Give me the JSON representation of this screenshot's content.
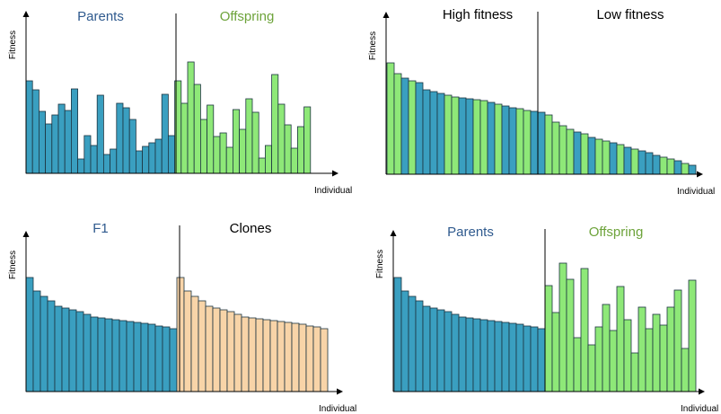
{
  "colors": {
    "blue": "#3a9fc0",
    "green": "#8ee878",
    "peach": "#f8d4a8",
    "outline": "#1c3440",
    "axis": "#000000",
    "parents_title": "#2f5a8e",
    "offspring_title": "#6da33a",
    "black_title": "#000000"
  },
  "panels": [
    {
      "id": "top-left",
      "ylabel": "Fitness",
      "xlabel": "Individual",
      "left_title": "Parents",
      "right_title": "Offspring",
      "left_title_color": "parents_title",
      "right_title_color": "offspring_title",
      "left_values": [
        103,
        93,
        69,
        55,
        65,
        77,
        70,
        94,
        16,
        42,
        31,
        87,
        21,
        27,
        78,
        73,
        60,
        25,
        30,
        34,
        38,
        88,
        42
      ],
      "right_values": [
        103,
        78,
        124,
        99,
        60,
        76,
        41,
        45,
        29,
        71,
        49,
        83,
        68,
        17,
        31,
        110,
        77,
        54,
        28,
        52,
        74
      ],
      "left_color": "blue",
      "right_color": "green"
    },
    {
      "id": "top-right",
      "ylabel": "Fitness",
      "xlabel": "Individual",
      "left_title": "High fitness",
      "right_title": "Low fitness",
      "left_title_color": "black_title",
      "right_title_color": "black_title",
      "left_values": [
        124,
        112,
        107,
        104,
        102,
        94,
        92,
        90,
        88,
        86,
        85,
        84,
        83,
        82,
        80,
        78,
        76,
        74,
        73,
        71,
        70,
        69
      ],
      "left_colors": [
        "green",
        "green",
        "blue",
        "green",
        "blue",
        "blue",
        "blue",
        "blue",
        "green",
        "green",
        "blue",
        "blue",
        "green",
        "green",
        "blue",
        "green",
        "blue",
        "blue",
        "green",
        "green",
        "blue",
        "blue"
      ],
      "right_values": [
        66,
        58,
        54,
        50,
        47,
        45,
        41,
        39,
        37,
        35,
        33,
        30,
        28,
        26,
        24,
        21,
        19,
        17,
        15,
        12,
        10
      ],
      "right_colors": [
        "green",
        "green",
        "green",
        "green",
        "blue",
        "green",
        "blue",
        "green",
        "green",
        "blue",
        "green",
        "blue",
        "green",
        "blue",
        "blue",
        "blue",
        "green",
        "green",
        "blue",
        "green",
        "blue"
      ]
    },
    {
      "id": "bottom-left",
      "ylabel": "Fitness",
      "xlabel": "Individual",
      "left_title": "F1",
      "right_title": "Clones",
      "left_title_color": "parents_title",
      "right_title_color": "black_title",
      "left_values": [
        127,
        112,
        106,
        101,
        95,
        93,
        91,
        89,
        86,
        83,
        82,
        81,
        80,
        79,
        78,
        77,
        76,
        75,
        73,
        72,
        70
      ],
      "right_values": [
        127,
        112,
        106,
        101,
        95,
        93,
        91,
        89,
        86,
        83,
        82,
        81,
        80,
        79,
        78,
        77,
        76,
        75,
        73,
        72,
        70
      ],
      "left_color": "blue",
      "right_color": "peach"
    },
    {
      "id": "bottom-right",
      "ylabel": "Fitness",
      "xlabel": "Individual",
      "left_title": "Parents",
      "right_title": "Offspring",
      "left_title_color": "parents_title",
      "right_title_color": "offspring_title",
      "left_values": [
        127,
        112,
        106,
        101,
        95,
        93,
        91,
        89,
        86,
        83,
        82,
        81,
        80,
        79,
        78,
        77,
        76,
        75,
        73,
        72,
        70
      ],
      "right_values": [
        118,
        88,
        143,
        125,
        60,
        137,
        52,
        72,
        97,
        68,
        117,
        80,
        43,
        94,
        70,
        86,
        74,
        94,
        113,
        48,
        124
      ],
      "left_color": "blue",
      "right_color": "green"
    }
  ]
}
